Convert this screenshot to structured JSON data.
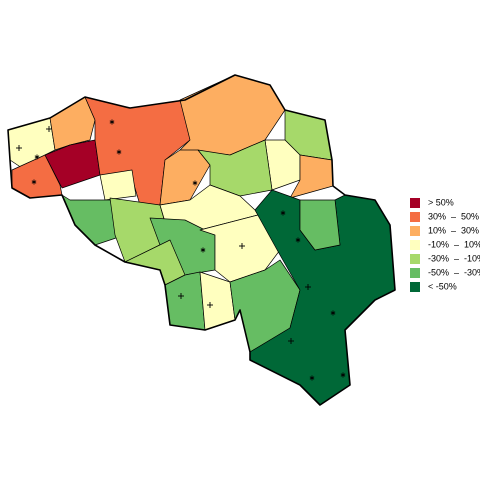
{
  "legend": {
    "items": [
      {
        "label": "> 50%",
        "color": "#a50026"
      },
      {
        "label": "30%  –  50%",
        "color": "#f46d43"
      },
      {
        "label": "10%  –  30%",
        "color": "#fdae61"
      },
      {
        "label": "-10%  –  10%",
        "color": "#ffffbf"
      },
      {
        "label": "-30%  –  -10%",
        "color": "#a6d96a"
      },
      {
        "label": "-50%  –  -30%",
        "color": "#66bd63"
      },
      {
        "label": "< -50%",
        "color": "#006837"
      }
    ]
  }
}
